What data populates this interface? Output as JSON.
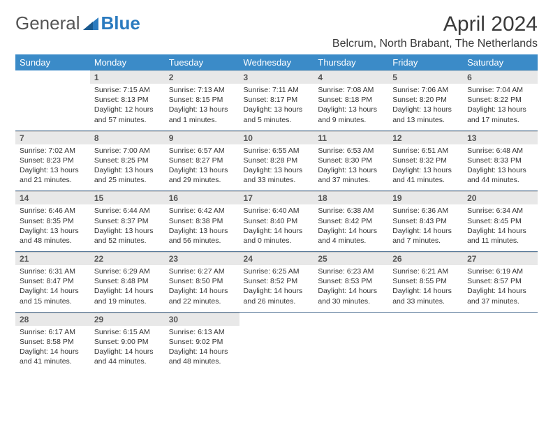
{
  "brand": {
    "left": "General",
    "right": "Blue"
  },
  "title": "April 2024",
  "location": "Belcrum, North Brabant, The Netherlands",
  "colors": {
    "header_bg": "#3b8bc8",
    "header_text": "#ffffff",
    "daynum_bg": "#e8e8e8",
    "row_border": "#5a7a9a",
    "text": "#333333",
    "brand_blue": "#2b7bbf"
  },
  "weekdays": [
    "Sunday",
    "Monday",
    "Tuesday",
    "Wednesday",
    "Thursday",
    "Friday",
    "Saturday"
  ],
  "layout": {
    "cols": 7,
    "rows": 5,
    "first_weekday_index": 1,
    "days_in_month": 30
  },
  "days": {
    "1": {
      "sunrise": "7:15 AM",
      "sunset": "8:13 PM",
      "daylight": "12 hours and 57 minutes."
    },
    "2": {
      "sunrise": "7:13 AM",
      "sunset": "8:15 PM",
      "daylight": "13 hours and 1 minutes."
    },
    "3": {
      "sunrise": "7:11 AM",
      "sunset": "8:17 PM",
      "daylight": "13 hours and 5 minutes."
    },
    "4": {
      "sunrise": "7:08 AM",
      "sunset": "8:18 PM",
      "daylight": "13 hours and 9 minutes."
    },
    "5": {
      "sunrise": "7:06 AM",
      "sunset": "8:20 PM",
      "daylight": "13 hours and 13 minutes."
    },
    "6": {
      "sunrise": "7:04 AM",
      "sunset": "8:22 PM",
      "daylight": "13 hours and 17 minutes."
    },
    "7": {
      "sunrise": "7:02 AM",
      "sunset": "8:23 PM",
      "daylight": "13 hours and 21 minutes."
    },
    "8": {
      "sunrise": "7:00 AM",
      "sunset": "8:25 PM",
      "daylight": "13 hours and 25 minutes."
    },
    "9": {
      "sunrise": "6:57 AM",
      "sunset": "8:27 PM",
      "daylight": "13 hours and 29 minutes."
    },
    "10": {
      "sunrise": "6:55 AM",
      "sunset": "8:28 PM",
      "daylight": "13 hours and 33 minutes."
    },
    "11": {
      "sunrise": "6:53 AM",
      "sunset": "8:30 PM",
      "daylight": "13 hours and 37 minutes."
    },
    "12": {
      "sunrise": "6:51 AM",
      "sunset": "8:32 PM",
      "daylight": "13 hours and 41 minutes."
    },
    "13": {
      "sunrise": "6:48 AM",
      "sunset": "8:33 PM",
      "daylight": "13 hours and 44 minutes."
    },
    "14": {
      "sunrise": "6:46 AM",
      "sunset": "8:35 PM",
      "daylight": "13 hours and 48 minutes."
    },
    "15": {
      "sunrise": "6:44 AM",
      "sunset": "8:37 PM",
      "daylight": "13 hours and 52 minutes."
    },
    "16": {
      "sunrise": "6:42 AM",
      "sunset": "8:38 PM",
      "daylight": "13 hours and 56 minutes."
    },
    "17": {
      "sunrise": "6:40 AM",
      "sunset": "8:40 PM",
      "daylight": "14 hours and 0 minutes."
    },
    "18": {
      "sunrise": "6:38 AM",
      "sunset": "8:42 PM",
      "daylight": "14 hours and 4 minutes."
    },
    "19": {
      "sunrise": "6:36 AM",
      "sunset": "8:43 PM",
      "daylight": "14 hours and 7 minutes."
    },
    "20": {
      "sunrise": "6:34 AM",
      "sunset": "8:45 PM",
      "daylight": "14 hours and 11 minutes."
    },
    "21": {
      "sunrise": "6:31 AM",
      "sunset": "8:47 PM",
      "daylight": "14 hours and 15 minutes."
    },
    "22": {
      "sunrise": "6:29 AM",
      "sunset": "8:48 PM",
      "daylight": "14 hours and 19 minutes."
    },
    "23": {
      "sunrise": "6:27 AM",
      "sunset": "8:50 PM",
      "daylight": "14 hours and 22 minutes."
    },
    "24": {
      "sunrise": "6:25 AM",
      "sunset": "8:52 PM",
      "daylight": "14 hours and 26 minutes."
    },
    "25": {
      "sunrise": "6:23 AM",
      "sunset": "8:53 PM",
      "daylight": "14 hours and 30 minutes."
    },
    "26": {
      "sunrise": "6:21 AM",
      "sunset": "8:55 PM",
      "daylight": "14 hours and 33 minutes."
    },
    "27": {
      "sunrise": "6:19 AM",
      "sunset": "8:57 PM",
      "daylight": "14 hours and 37 minutes."
    },
    "28": {
      "sunrise": "6:17 AM",
      "sunset": "8:58 PM",
      "daylight": "14 hours and 41 minutes."
    },
    "29": {
      "sunrise": "6:15 AM",
      "sunset": "9:00 PM",
      "daylight": "14 hours and 44 minutes."
    },
    "30": {
      "sunrise": "6:13 AM",
      "sunset": "9:02 PM",
      "daylight": "14 hours and 48 minutes."
    }
  },
  "labels": {
    "sunrise": "Sunrise: ",
    "sunset": "Sunset: ",
    "daylight": "Daylight: "
  }
}
